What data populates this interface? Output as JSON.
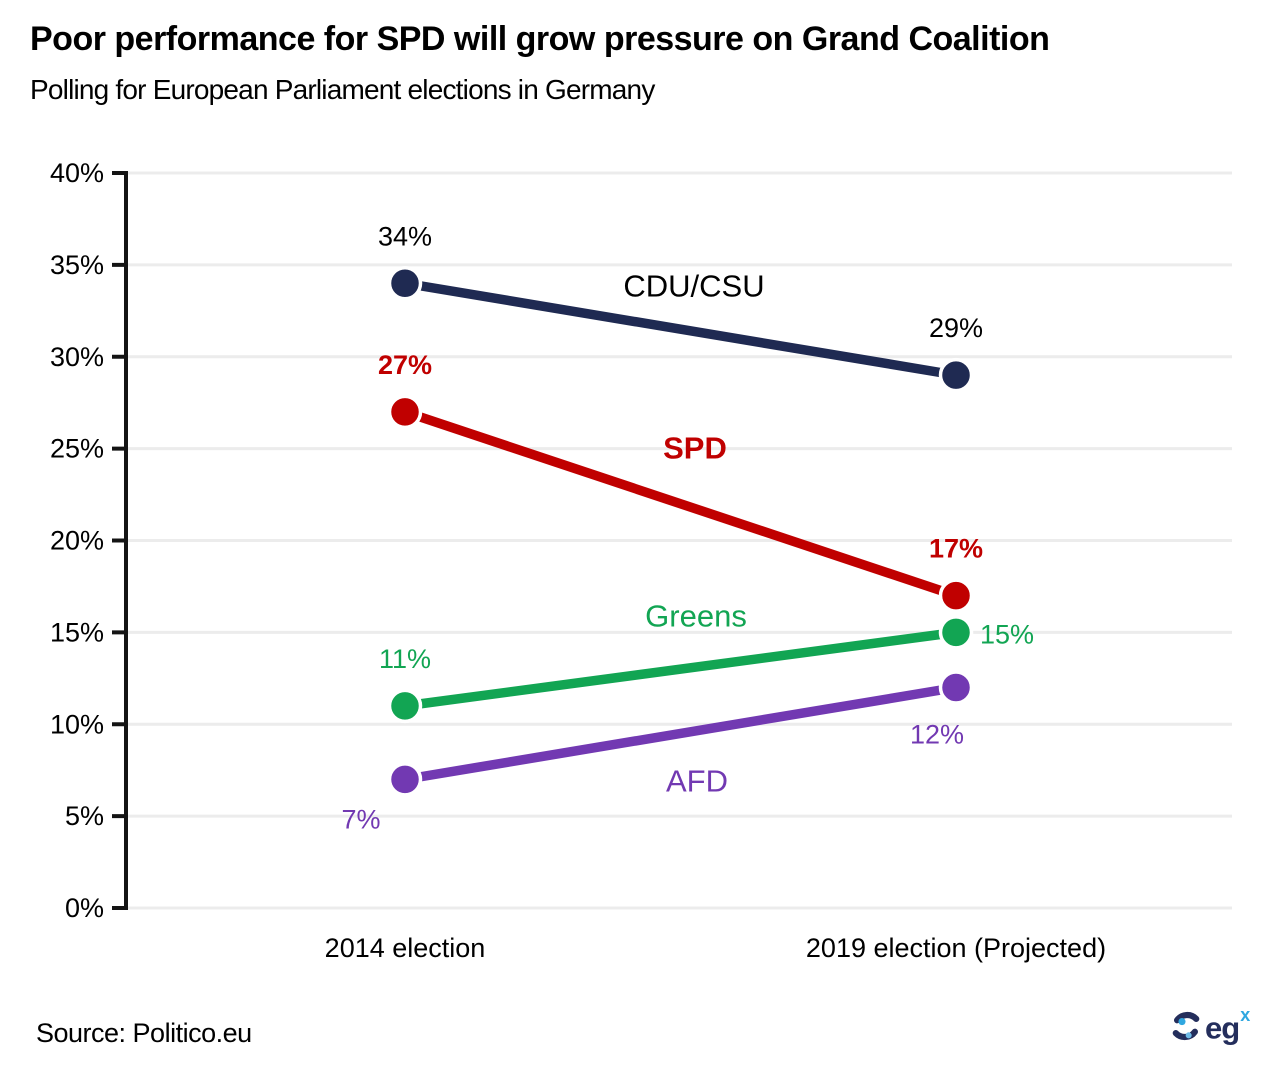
{
  "header": {
    "title": "Poor performance for SPD will grow pressure on Grand Coalition",
    "subtitle": "Polling for European Parliament elections in Germany"
  },
  "chart_data": {
    "type": "line",
    "title": "Polling for European Parliament elections in Germany",
    "categories": [
      "2014 election",
      "2019 election (Projected)"
    ],
    "ylim": [
      0,
      40
    ],
    "ytick_step": 5,
    "ytick_suffix": "%",
    "grid": true,
    "legend_position": "inline-labels",
    "xlabel": "",
    "ylabel": "",
    "series": [
      {
        "name": "CDU/CSU",
        "values": [
          34,
          29
        ],
        "data_labels": [
          "34%",
          "29%"
        ],
        "color": "#1F2A52",
        "label_color": "#000000",
        "label_bold": false,
        "name_color": "#000000",
        "name_bold": false,
        "label_placements": [
          "above",
          "above"
        ]
      },
      {
        "name": "SPD",
        "values": [
          27,
          17
        ],
        "data_labels": [
          "27%",
          "17%"
        ],
        "color": "#C00000",
        "label_color": "#C00000",
        "label_bold": true,
        "name_color": "#C00000",
        "name_bold": true,
        "label_placements": [
          "above",
          "above"
        ]
      },
      {
        "name": "Greens",
        "values": [
          11,
          15
        ],
        "data_labels": [
          "11%",
          "15%"
        ],
        "color": "#12A553",
        "label_color": "#12A553",
        "label_bold": false,
        "name_color": "#12A553",
        "name_bold": false,
        "label_placements": [
          "above",
          "right"
        ]
      },
      {
        "name": "AFD",
        "values": [
          7,
          12
        ],
        "data_labels": [
          "7%",
          "12%"
        ],
        "color": "#7239B2",
        "label_color": "#7239B2",
        "label_bold": false,
        "name_color": "#7239B2",
        "name_bold": false,
        "label_placements": [
          "below-left",
          "below"
        ]
      }
    ]
  },
  "footer": {
    "source": "Source: Politico.eu",
    "logo": {
      "text": "eg",
      "sup": "x"
    }
  }
}
